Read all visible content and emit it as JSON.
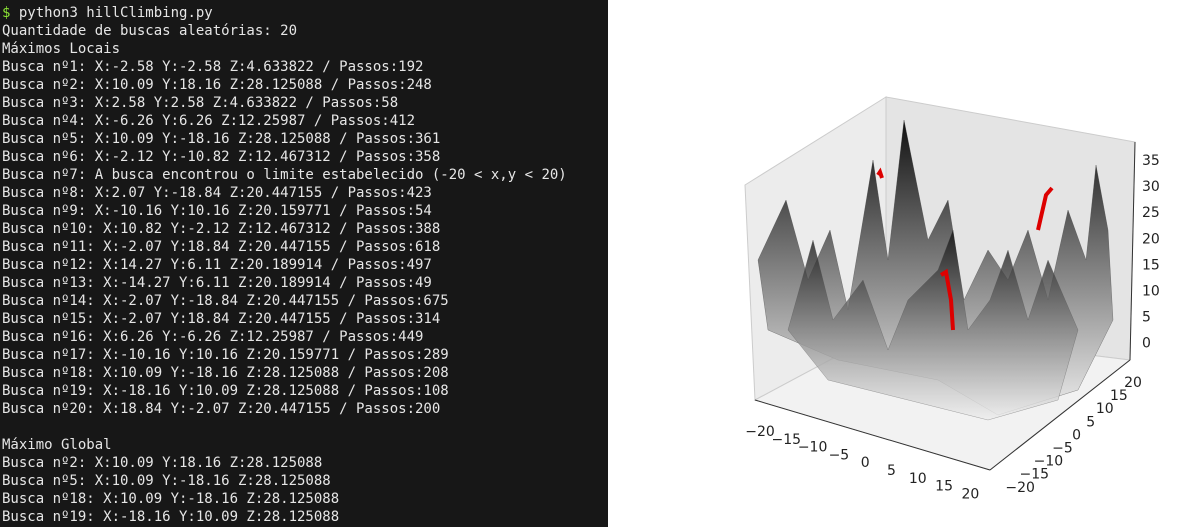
{
  "terminal": {
    "prompt": "$",
    "command": "python3 hillClimbing.py",
    "count_line": "Quantidade de buscas aleatórias: 20",
    "local_header": "Máximos Locais",
    "local_results": [
      "Busca nº1: X:-2.58 Y:-2.58 Z:4.633822 / Passos:192",
      "Busca nº2: X:10.09 Y:18.16 Z:28.125088 / Passos:248",
      "Busca nº3: X:2.58 Y:2.58 Z:4.633822 / Passos:58",
      "Busca nº4: X:-6.26 Y:6.26 Z:12.25987 / Passos:412",
      "Busca nº5: X:10.09 Y:-18.16 Z:28.125088 / Passos:361",
      "Busca nº6: X:-2.12 Y:-10.82 Z:12.467312 / Passos:358",
      "Busca nº7: A busca encontrou o limite estabelecido (-20 < x,y < 20)",
      "Busca nº8: X:2.07 Y:-18.84 Z:20.447155 / Passos:423",
      "Busca nº9: X:-10.16 Y:10.16 Z:20.159771 / Passos:54",
      "Busca nº10: X:10.82 Y:-2.12 Z:12.467312 / Passos:388",
      "Busca nº11: X:-2.07 Y:18.84 Z:20.447155 / Passos:618",
      "Busca nº12: X:14.27 Y:6.11 Z:20.189914 / Passos:497",
      "Busca nº13: X:-14.27 Y:6.11 Z:20.189914 / Passos:49",
      "Busca nº14: X:-2.07 Y:-18.84 Z:20.447155 / Passos:675",
      "Busca nº15: X:-2.07 Y:18.84 Z:20.447155 / Passos:314",
      "Busca nº16: X:6.26 Y:-6.26 Z:12.25987 / Passos:449",
      "Busca nº17: X:-10.16 Y:10.16 Z:20.159771 / Passos:289",
      "Busca nº18: X:10.09 Y:-18.16 Z:28.125088 / Passos:208",
      "Busca nº19: X:-18.16 Y:10.09 Z:28.125088 / Passos:108",
      "Busca nº20: X:18.84 Y:-2.07 Z:20.447155 / Passos:200"
    ],
    "global_header": "Máximo Global",
    "global_results": [
      "Busca nº2: X:10.09 Y:18.16 Z:28.125088",
      "Busca nº5: X:10.09 Y:-18.16 Z:28.125088",
      "Busca nº18: X:10.09 Y:-18.16 Z:28.125088",
      "Busca nº19: X:-18.16 Y:10.09 Z:28.125088"
    ]
  },
  "plot": {
    "zticks": [
      "35",
      "30",
      "25",
      "20",
      "15",
      "10",
      "5",
      "0"
    ],
    "xticks": [
      "−20",
      "−15",
      "−10",
      "−5",
      "0",
      "5",
      "10",
      "15",
      "20"
    ],
    "yticks": [
      "20",
      "15",
      "10",
      "5",
      "0",
      "−5",
      "−10",
      "−15",
      "−20"
    ]
  }
}
